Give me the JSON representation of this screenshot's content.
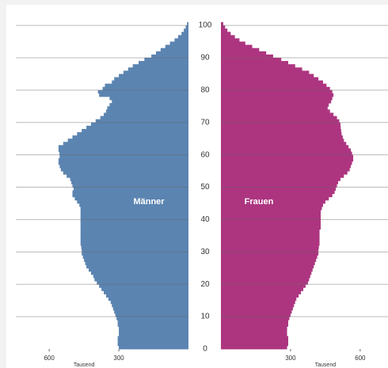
{
  "chart_data": {
    "type": "pyramid",
    "categories": [
      0,
      1,
      2,
      3,
      4,
      5,
      6,
      7,
      8,
      9,
      10,
      11,
      12,
      13,
      14,
      15,
      16,
      17,
      18,
      19,
      20,
      21,
      22,
      23,
      24,
      25,
      26,
      27,
      28,
      29,
      30,
      31,
      32,
      33,
      34,
      35,
      36,
      37,
      38,
      39,
      40,
      41,
      42,
      43,
      44,
      45,
      46,
      47,
      48,
      49,
      50,
      51,
      52,
      53,
      54,
      55,
      56,
      57,
      58,
      59,
      60,
      61,
      62,
      63,
      64,
      65,
      66,
      67,
      68,
      69,
      70,
      71,
      72,
      73,
      74,
      75,
      76,
      77,
      78,
      79,
      80,
      81,
      82,
      83,
      84,
      85,
      86,
      87,
      88,
      89,
      90,
      91,
      92,
      93,
      94,
      95,
      96,
      97,
      98,
      99,
      100
    ],
    "series": [
      {
        "name": "Männer",
        "color": "#5b84b1",
        "values": [
          300,
          305,
          305,
          305,
          300,
          300,
          300,
          305,
          305,
          310,
          315,
          320,
          325,
          330,
          335,
          345,
          355,
          365,
          375,
          385,
          395,
          405,
          410,
          420,
          430,
          440,
          445,
          450,
          455,
          460,
          460,
          462,
          465,
          465,
          465,
          465,
          465,
          465,
          465,
          465,
          465,
          465,
          465,
          465,
          470,
          480,
          490,
          500,
          500,
          495,
          500,
          505,
          510,
          525,
          540,
          550,
          555,
          560,
          560,
          555,
          556,
          560,
          560,
          540,
          520,
          500,
          480,
          460,
          440,
          420,
          400,
          380,
          365,
          355,
          350,
          340,
          330,
          340,
          385,
          390,
          370,
          360,
          330,
          320,
          300,
          280,
          260,
          240,
          215,
          190,
          160,
          140,
          120,
          100,
          80,
          60,
          45,
          30,
          20,
          12,
          6
        ]
      },
      {
        "name": "Frauen",
        "color": "#ad3580",
        "values": [
          285,
          290,
          290,
          290,
          285,
          285,
          285,
          290,
          290,
          295,
          300,
          305,
          310,
          315,
          320,
          325,
          335,
          345,
          355,
          365,
          375,
          380,
          385,
          390,
          395,
          400,
          405,
          410,
          415,
          420,
          420,
          422,
          425,
          425,
          425,
          425,
          425,
          430,
          430,
          430,
          430,
          430,
          430,
          435,
          440,
          450,
          465,
          480,
          490,
          495,
          500,
          505,
          515,
          530,
          545,
          555,
          560,
          565,
          570,
          570,
          565,
          560,
          550,
          540,
          530,
          525,
          520,
          518,
          516,
          515,
          510,
          500,
          485,
          470,
          460,
          465,
          475,
          480,
          485,
          480,
          470,
          455,
          440,
          420,
          400,
          380,
          350,
          320,
          290,
          260,
          225,
          195,
          165,
          135,
          105,
          80,
          60,
          42,
          28,
          18,
          10
        ]
      }
    ],
    "ylim": [
      0,
      101
    ],
    "yticks": [
      0,
      10,
      20,
      30,
      40,
      50,
      60,
      70,
      80,
      90,
      100
    ],
    "xlim": [
      0,
      720
    ],
    "xticks": [
      300,
      600
    ],
    "xlabel": "Tausend",
    "grid": true
  }
}
